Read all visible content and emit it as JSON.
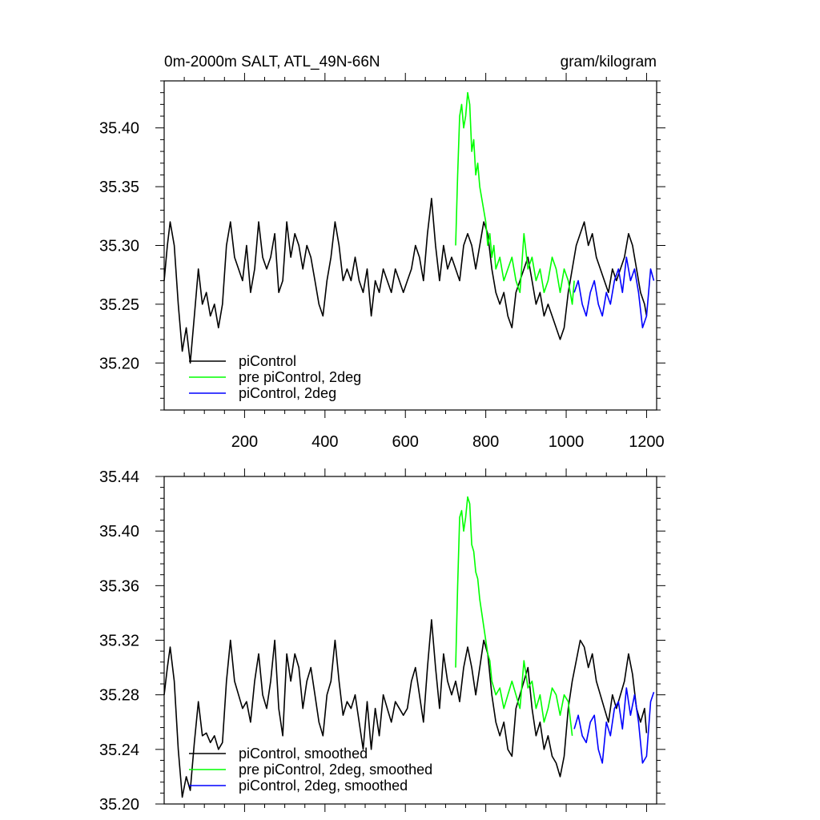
{
  "header": {
    "left_title": "0m-2000m SALT, ATL_49N-66N",
    "right_title": "gram/kilogram"
  },
  "colors": {
    "piControl": "#000000",
    "pre_piControl_2deg": "#00ff00",
    "piControl_2deg": "#0000ff"
  },
  "chart_data": [
    {
      "type": "line",
      "panel": "top",
      "xlim": [
        0,
        1225
      ],
      "ylim": [
        35.16,
        35.44
      ],
      "xticks": [
        200,
        400,
        600,
        800,
        1000,
        1200
      ],
      "xtick_labels": [
        "200",
        "400",
        "600",
        "800",
        "1000",
        "1200"
      ],
      "yticks": [
        35.2,
        35.25,
        35.3,
        35.35,
        35.4
      ],
      "ytick_labels": [
        "35.20",
        "35.25",
        "35.30",
        "35.35",
        "35.40"
      ],
      "grid": false,
      "legend_position": "bottom-left",
      "series": [
        {
          "name": "piControl",
          "color": "#000000",
          "x": [
            0,
            8,
            15,
            25,
            35,
            45,
            55,
            65,
            75,
            85,
            95,
            105,
            115,
            125,
            135,
            145,
            155,
            165,
            175,
            185,
            195,
            205,
            215,
            225,
            235,
            245,
            255,
            265,
            275,
            285,
            295,
            305,
            315,
            325,
            335,
            345,
            355,
            365,
            375,
            385,
            395,
            405,
            415,
            425,
            435,
            445,
            455,
            465,
            475,
            485,
            495,
            505,
            515,
            525,
            535,
            545,
            555,
            565,
            575,
            585,
            595,
            605,
            615,
            625,
            635,
            645,
            655,
            665,
            675,
            685,
            695,
            705,
            715,
            725,
            735,
            745,
            755,
            765,
            775,
            785,
            795,
            805,
            815,
            825,
            835,
            845,
            855,
            865,
            875,
            885,
            895,
            905,
            915,
            925,
            935,
            945,
            955,
            965,
            975,
            985,
            995,
            1005,
            1015,
            1025,
            1035,
            1045,
            1055,
            1065,
            1075,
            1085,
            1095,
            1105,
            1115,
            1125,
            1135,
            1145,
            1155,
            1165,
            1175,
            1185,
            1195,
            1200
          ],
          "values": [
            35.27,
            35.3,
            35.32,
            35.3,
            35.25,
            35.21,
            35.23,
            35.2,
            35.24,
            35.28,
            35.25,
            35.26,
            35.24,
            35.25,
            35.23,
            35.25,
            35.3,
            35.32,
            35.29,
            35.28,
            35.27,
            35.3,
            35.26,
            35.28,
            35.32,
            35.29,
            35.28,
            35.29,
            35.31,
            35.26,
            35.27,
            35.32,
            35.29,
            35.31,
            35.3,
            35.28,
            35.3,
            35.29,
            35.27,
            35.25,
            35.24,
            35.27,
            35.29,
            35.32,
            35.3,
            35.27,
            35.28,
            35.27,
            35.29,
            35.27,
            35.26,
            35.28,
            35.24,
            35.27,
            35.26,
            35.28,
            35.27,
            35.26,
            35.28,
            35.27,
            35.26,
            35.27,
            35.28,
            35.3,
            35.29,
            35.27,
            35.31,
            35.34,
            35.3,
            35.27,
            35.3,
            35.28,
            35.29,
            35.28,
            35.27,
            35.3,
            35.31,
            35.3,
            35.28,
            35.3,
            35.32,
            35.31,
            35.28,
            35.26,
            35.25,
            35.26,
            35.24,
            35.23,
            35.26,
            35.27,
            35.28,
            35.29,
            35.27,
            35.25,
            35.26,
            35.24,
            35.25,
            35.24,
            35.23,
            35.22,
            35.23,
            35.26,
            35.28,
            35.3,
            35.31,
            35.32,
            35.3,
            35.31,
            35.29,
            35.28,
            35.27,
            35.26,
            35.28,
            35.27,
            35.28,
            35.29,
            35.31,
            35.3,
            35.28,
            35.26,
            35.25,
            35.24
          ]
        },
        {
          "name": "pre piControl, 2deg",
          "color": "#00ff00",
          "x": [
            725,
            730,
            735,
            740,
            745,
            750,
            755,
            760,
            765,
            770,
            775,
            780,
            785,
            790,
            795,
            800,
            805,
            810,
            815,
            820,
            825,
            835,
            845,
            855,
            865,
            875,
            885,
            895,
            905,
            915,
            925,
            935,
            945,
            955,
            965,
            975,
            985,
            995,
            1005,
            1015,
            1020
          ],
          "values": [
            35.3,
            35.36,
            35.41,
            35.42,
            35.4,
            35.41,
            35.43,
            35.42,
            35.38,
            35.39,
            35.36,
            35.37,
            35.35,
            35.34,
            35.33,
            35.32,
            35.3,
            35.31,
            35.29,
            35.3,
            35.28,
            35.29,
            35.27,
            35.28,
            35.29,
            35.27,
            35.26,
            35.31,
            35.28,
            35.29,
            35.27,
            35.28,
            35.26,
            35.27,
            35.29,
            35.28,
            35.26,
            35.28,
            35.27,
            35.25,
            35.27
          ]
        },
        {
          "name": "piControl, 2deg",
          "color": "#0000ff",
          "x": [
            1020,
            1030,
            1040,
            1050,
            1060,
            1070,
            1080,
            1090,
            1100,
            1110,
            1120,
            1130,
            1140,
            1150,
            1160,
            1170,
            1180,
            1190,
            1200,
            1210,
            1218
          ],
          "values": [
            35.26,
            35.27,
            35.25,
            35.24,
            35.26,
            35.27,
            35.25,
            35.24,
            35.26,
            35.25,
            35.27,
            35.28,
            35.26,
            35.29,
            35.27,
            35.28,
            35.26,
            35.23,
            35.24,
            35.28,
            35.27
          ]
        }
      ]
    },
    {
      "type": "line",
      "panel": "bottom",
      "xlim": [
        0,
        1225
      ],
      "ylim": [
        35.2,
        35.44
      ],
      "xticks": [
        200,
        400,
        600,
        800,
        1000,
        1200
      ],
      "yticks": [
        35.2,
        35.24,
        35.28,
        35.32,
        35.36,
        35.4,
        35.44
      ],
      "ytick_labels": [
        "35.20",
        "35.24",
        "35.28",
        "35.32",
        "35.36",
        "35.40",
        "35.44"
      ],
      "grid": false,
      "legend_position": "bottom-left",
      "series": [
        {
          "name": "piControl, smoothed",
          "color": "#000000",
          "x": [
            0,
            8,
            15,
            25,
            35,
            45,
            55,
            65,
            75,
            85,
            95,
            105,
            115,
            125,
            135,
            145,
            155,
            165,
            175,
            185,
            195,
            205,
            215,
            225,
            235,
            245,
            255,
            265,
            275,
            285,
            295,
            305,
            315,
            325,
            335,
            345,
            355,
            365,
            375,
            385,
            395,
            405,
            415,
            425,
            435,
            445,
            455,
            465,
            475,
            485,
            495,
            505,
            515,
            525,
            535,
            545,
            555,
            565,
            575,
            585,
            595,
            605,
            615,
            625,
            635,
            645,
            655,
            665,
            675,
            685,
            695,
            705,
            715,
            725,
            735,
            745,
            755,
            765,
            775,
            785,
            795,
            805,
            815,
            825,
            835,
            845,
            855,
            865,
            875,
            885,
            895,
            905,
            915,
            925,
            935,
            945,
            955,
            965,
            975,
            985,
            995,
            1005,
            1015,
            1025,
            1035,
            1045,
            1055,
            1065,
            1075,
            1085,
            1095,
            1105,
            1115,
            1125,
            1135,
            1145,
            1155,
            1165,
            1175,
            1185,
            1195,
            1200
          ],
          "values": [
            35.28,
            35.3,
            35.315,
            35.29,
            35.24,
            35.205,
            35.22,
            35.21,
            35.245,
            35.275,
            35.25,
            35.252,
            35.245,
            35.25,
            35.24,
            35.245,
            35.29,
            35.32,
            35.29,
            35.28,
            35.27,
            35.275,
            35.26,
            35.29,
            35.31,
            35.28,
            35.27,
            35.29,
            35.32,
            35.27,
            35.25,
            35.31,
            35.29,
            35.31,
            35.3,
            35.27,
            35.29,
            35.3,
            35.28,
            35.26,
            35.25,
            35.28,
            35.29,
            35.32,
            35.29,
            35.265,
            35.275,
            35.27,
            35.28,
            35.26,
            35.24,
            35.275,
            35.24,
            35.27,
            35.25,
            35.28,
            35.27,
            35.26,
            35.275,
            35.27,
            35.265,
            35.27,
            35.29,
            35.3,
            35.28,
            35.26,
            35.3,
            35.335,
            35.3,
            35.27,
            35.31,
            35.29,
            35.28,
            35.29,
            35.275,
            35.3,
            35.315,
            35.3,
            35.28,
            35.3,
            35.32,
            35.31,
            35.28,
            35.26,
            35.25,
            35.26,
            35.24,
            35.235,
            35.27,
            35.28,
            35.29,
            35.3,
            35.27,
            35.25,
            35.26,
            35.24,
            35.25,
            35.235,
            35.23,
            35.22,
            35.235,
            35.27,
            35.29,
            35.305,
            35.32,
            35.315,
            35.3,
            35.31,
            35.29,
            35.28,
            35.27,
            35.26,
            35.28,
            35.27,
            35.28,
            35.29,
            35.31,
            35.295,
            35.27,
            35.26,
            35.27,
            35.252
          ]
        },
        {
          "name": "pre piControl, 2deg, smoothed",
          "color": "#00ff00",
          "x": [
            725,
            730,
            735,
            740,
            745,
            750,
            755,
            760,
            765,
            770,
            775,
            780,
            785,
            790,
            795,
            800,
            805,
            810,
            815,
            820,
            825,
            835,
            845,
            855,
            865,
            875,
            885,
            895,
            905,
            915,
            925,
            935,
            945,
            955,
            965,
            975,
            985,
            995,
            1005,
            1015
          ],
          "values": [
            35.3,
            35.36,
            35.41,
            35.415,
            35.4,
            35.41,
            35.425,
            35.42,
            35.39,
            35.385,
            35.37,
            35.365,
            35.35,
            35.34,
            35.33,
            35.32,
            35.31,
            35.305,
            35.29,
            35.285,
            35.28,
            35.285,
            35.27,
            35.28,
            35.29,
            35.28,
            35.27,
            35.305,
            35.285,
            35.29,
            35.27,
            35.28,
            35.26,
            35.27,
            35.285,
            35.28,
            35.265,
            35.28,
            35.275,
            35.25
          ]
        },
        {
          "name": "piControl, 2deg, smoothed",
          "color": "#0000ff",
          "x": [
            1020,
            1030,
            1040,
            1050,
            1060,
            1070,
            1080,
            1090,
            1100,
            1110,
            1120,
            1130,
            1140,
            1150,
            1160,
            1170,
            1180,
            1190,
            1200,
            1210,
            1218
          ],
          "values": [
            35.255,
            35.265,
            35.25,
            35.245,
            35.26,
            35.265,
            35.24,
            35.23,
            35.26,
            35.25,
            35.27,
            35.275,
            35.255,
            35.285,
            35.265,
            35.28,
            35.26,
            35.23,
            35.235,
            35.275,
            35.282
          ]
        }
      ]
    }
  ]
}
